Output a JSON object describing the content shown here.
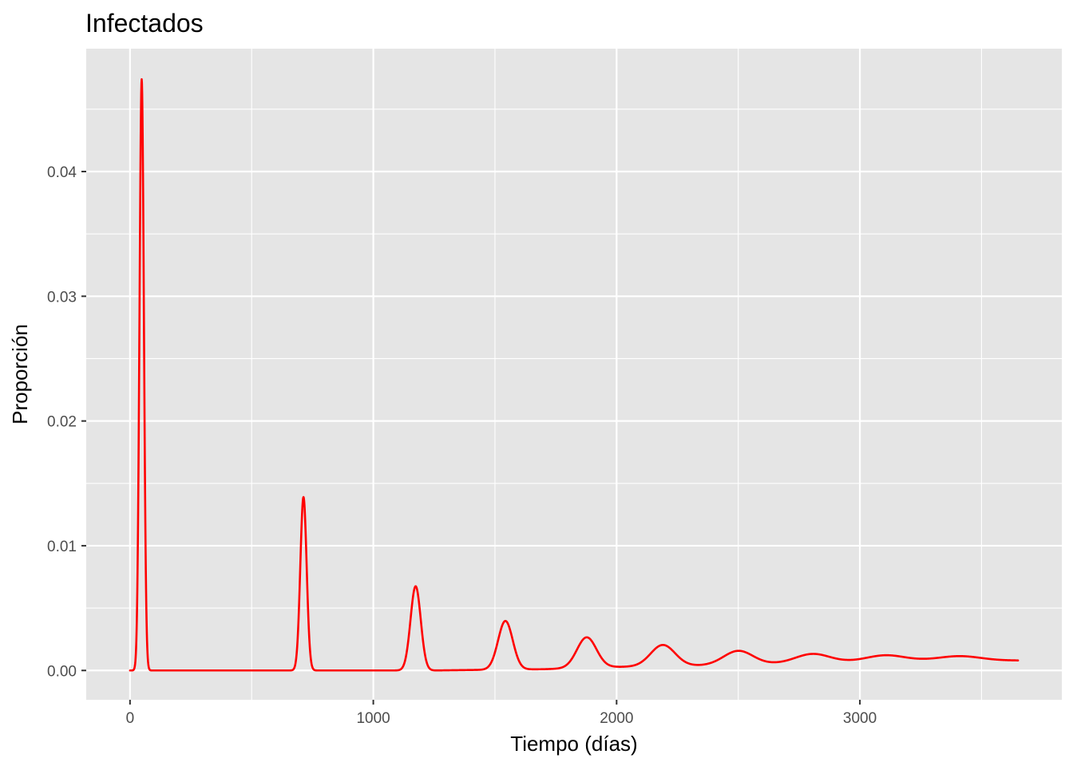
{
  "chart_data": {
    "type": "line",
    "title": "Infectados",
    "xlabel": "Tiempo (días)",
    "ylabel": "Proporción",
    "xlim": [
      -180,
      3830
    ],
    "ylim": [
      -0.00235,
      0.04985
    ],
    "x_ticks": [
      0,
      1000,
      2000,
      3000
    ],
    "x_tick_labels": [
      "0",
      "1000",
      "2000",
      "3000"
    ],
    "y_ticks": [
      0,
      0.01,
      0.02,
      0.03,
      0.04
    ],
    "y_tick_labels": [
      "0.00",
      "0.01",
      "0.02",
      "0.03",
      "0.04"
    ],
    "grid": true,
    "background": "#e5e5e5",
    "series": [
      {
        "color": "#ff0000",
        "x_range": [
          0,
          3650
        ],
        "baseline": [
          [
            0,
            0
          ],
          [
            100,
            0
          ],
          [
            800,
            0
          ],
          [
            1250,
            0
          ],
          [
            1450,
            5e-05
          ],
          [
            1700,
            0.0001
          ],
          [
            2000,
            0.00028
          ],
          [
            2350,
            0.0004
          ],
          [
            2650,
            0.00055
          ],
          [
            2950,
            0.0007
          ],
          [
            3260,
            0.0008
          ],
          [
            3550,
            0.0008
          ],
          [
            3650,
            0.0008
          ]
        ],
        "peaks": [
          {
            "t": 48,
            "height": 0.0474,
            "width": 9
          },
          {
            "t": 713,
            "height": 0.0139,
            "width": 13
          },
          {
            "t": 1174,
            "height": 0.00675,
            "width": 21
          },
          {
            "t": 1543,
            "height": 0.0039,
            "width": 30
          },
          {
            "t": 1877,
            "height": 0.00245,
            "width": 40
          },
          {
            "t": 2190,
            "height": 0.0017,
            "width": 50
          },
          {
            "t": 2500,
            "height": 0.0011,
            "width": 60
          },
          {
            "t": 2805,
            "height": 0.0007,
            "width": 70
          },
          {
            "t": 3105,
            "height": 0.00047,
            "width": 78
          },
          {
            "t": 3410,
            "height": 0.00035,
            "width": 85
          }
        ]
      }
    ]
  }
}
